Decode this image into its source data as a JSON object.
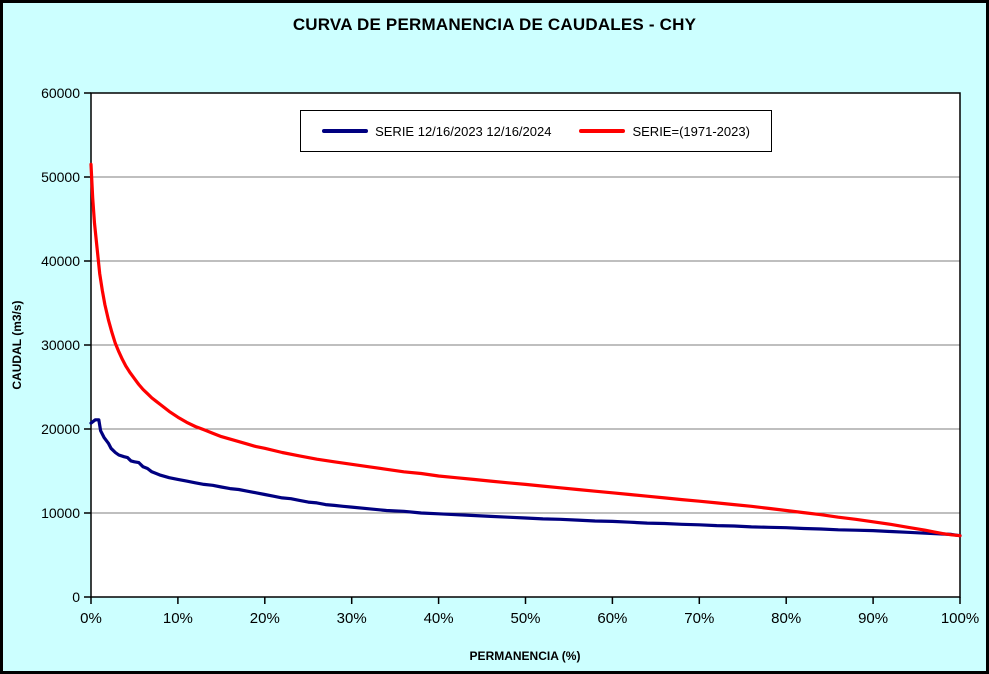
{
  "chart_data": {
    "type": "line",
    "title": "CURVA DE PERMANENCIA DE CAUDALES - CHY",
    "xlabel": "PERMANENCIA (%)",
    "ylabel": "CAUDAL (m3/s)",
    "xlim": [
      0,
      100
    ],
    "ylim": [
      0,
      60000
    ],
    "x_ticks": [
      "0%",
      "10%",
      "20%",
      "30%",
      "40%",
      "50%",
      "60%",
      "70%",
      "80%",
      "90%",
      "100%"
    ],
    "x_tick_values": [
      0,
      10,
      20,
      30,
      40,
      50,
      60,
      70,
      80,
      90,
      100
    ],
    "y_ticks": [
      0,
      10000,
      20000,
      30000,
      40000,
      50000,
      60000
    ],
    "grid": "horizontal",
    "legend_position": "top-center",
    "colors": {
      "background": "#CCFFFF",
      "plot_background": "#FFFFFF",
      "gridline": "#7F7F7F",
      "axis": "#000000"
    },
    "series": [
      {
        "name": "SERIE 12/16/2023 12/16/2024",
        "color": "#000080",
        "x": [
          0,
          0.5,
          0.9,
          1.1,
          1.5,
          2,
          2.3,
          2.8,
          3.2,
          3.8,
          4.2,
          4.6,
          5,
          5.5,
          6,
          6.5,
          7,
          7.5,
          8,
          9,
          10,
          11,
          12,
          13,
          14,
          15,
          16,
          17,
          18,
          19,
          20,
          21,
          22,
          23,
          24,
          25,
          26,
          27,
          28,
          29,
          30,
          32,
          34,
          36,
          38,
          40,
          42,
          44,
          46,
          48,
          50,
          52,
          54,
          56,
          58,
          60,
          62,
          64,
          66,
          68,
          70,
          72,
          74,
          76,
          78,
          80,
          82,
          84,
          86,
          88,
          90,
          92,
          94,
          96,
          98,
          99,
          100
        ],
        "y": [
          20700,
          21100,
          21100,
          19800,
          19000,
          18300,
          17700,
          17200,
          16900,
          16700,
          16600,
          16200,
          16100,
          16000,
          15500,
          15300,
          14900,
          14700,
          14500,
          14200,
          14000,
          13800,
          13600,
          13400,
          13300,
          13100,
          12900,
          12800,
          12600,
          12400,
          12200,
          12000,
          11800,
          11700,
          11500,
          11300,
          11200,
          11000,
          10900,
          10800,
          10700,
          10500,
          10300,
          10200,
          10000,
          9900,
          9800,
          9700,
          9600,
          9500,
          9400,
          9300,
          9250,
          9150,
          9050,
          9000,
          8900,
          8800,
          8750,
          8650,
          8600,
          8500,
          8450,
          8350,
          8300,
          8250,
          8150,
          8100,
          8000,
          7950,
          7900,
          7800,
          7700,
          7600,
          7500,
          7450,
          7300
        ]
      },
      {
        "name": "SERIE=(1971-2023)",
        "color": "#FF0000",
        "x": [
          0,
          0.2,
          0.4,
          0.7,
          1,
          1.3,
          1.6,
          2,
          2.4,
          2.8,
          3.2,
          3.6,
          4,
          4.5,
          5,
          5.5,
          6,
          6.5,
          7,
          7.5,
          8,
          9,
          10,
          11,
          12,
          13,
          14,
          15,
          16,
          17,
          18,
          19,
          20,
          22,
          24,
          26,
          28,
          30,
          32,
          34,
          36,
          38,
          40,
          42,
          44,
          46,
          48,
          50,
          52,
          54,
          56,
          58,
          60,
          62,
          64,
          66,
          68,
          70,
          72,
          74,
          76,
          78,
          80,
          82,
          84,
          86,
          88,
          90,
          92,
          94,
          96,
          97,
          98,
          99,
          100
        ],
        "y": [
          51500,
          47500,
          44500,
          41500,
          38500,
          36500,
          34800,
          33000,
          31500,
          30200,
          29200,
          28300,
          27500,
          26700,
          26000,
          25300,
          24700,
          24200,
          23700,
          23300,
          22900,
          22100,
          21400,
          20800,
          20300,
          19900,
          19500,
          19100,
          18800,
          18500,
          18200,
          17900,
          17700,
          17200,
          16800,
          16400,
          16100,
          15800,
          15500,
          15200,
          14900,
          14700,
          14400,
          14200,
          14000,
          13800,
          13600,
          13400,
          13200,
          13000,
          12800,
          12600,
          12400,
          12200,
          12000,
          11800,
          11600,
          11400,
          11200,
          11000,
          10800,
          10550,
          10300,
          10050,
          9800,
          9500,
          9250,
          8950,
          8650,
          8300,
          7950,
          7750,
          7550,
          7400,
          7300
        ]
      }
    ]
  }
}
